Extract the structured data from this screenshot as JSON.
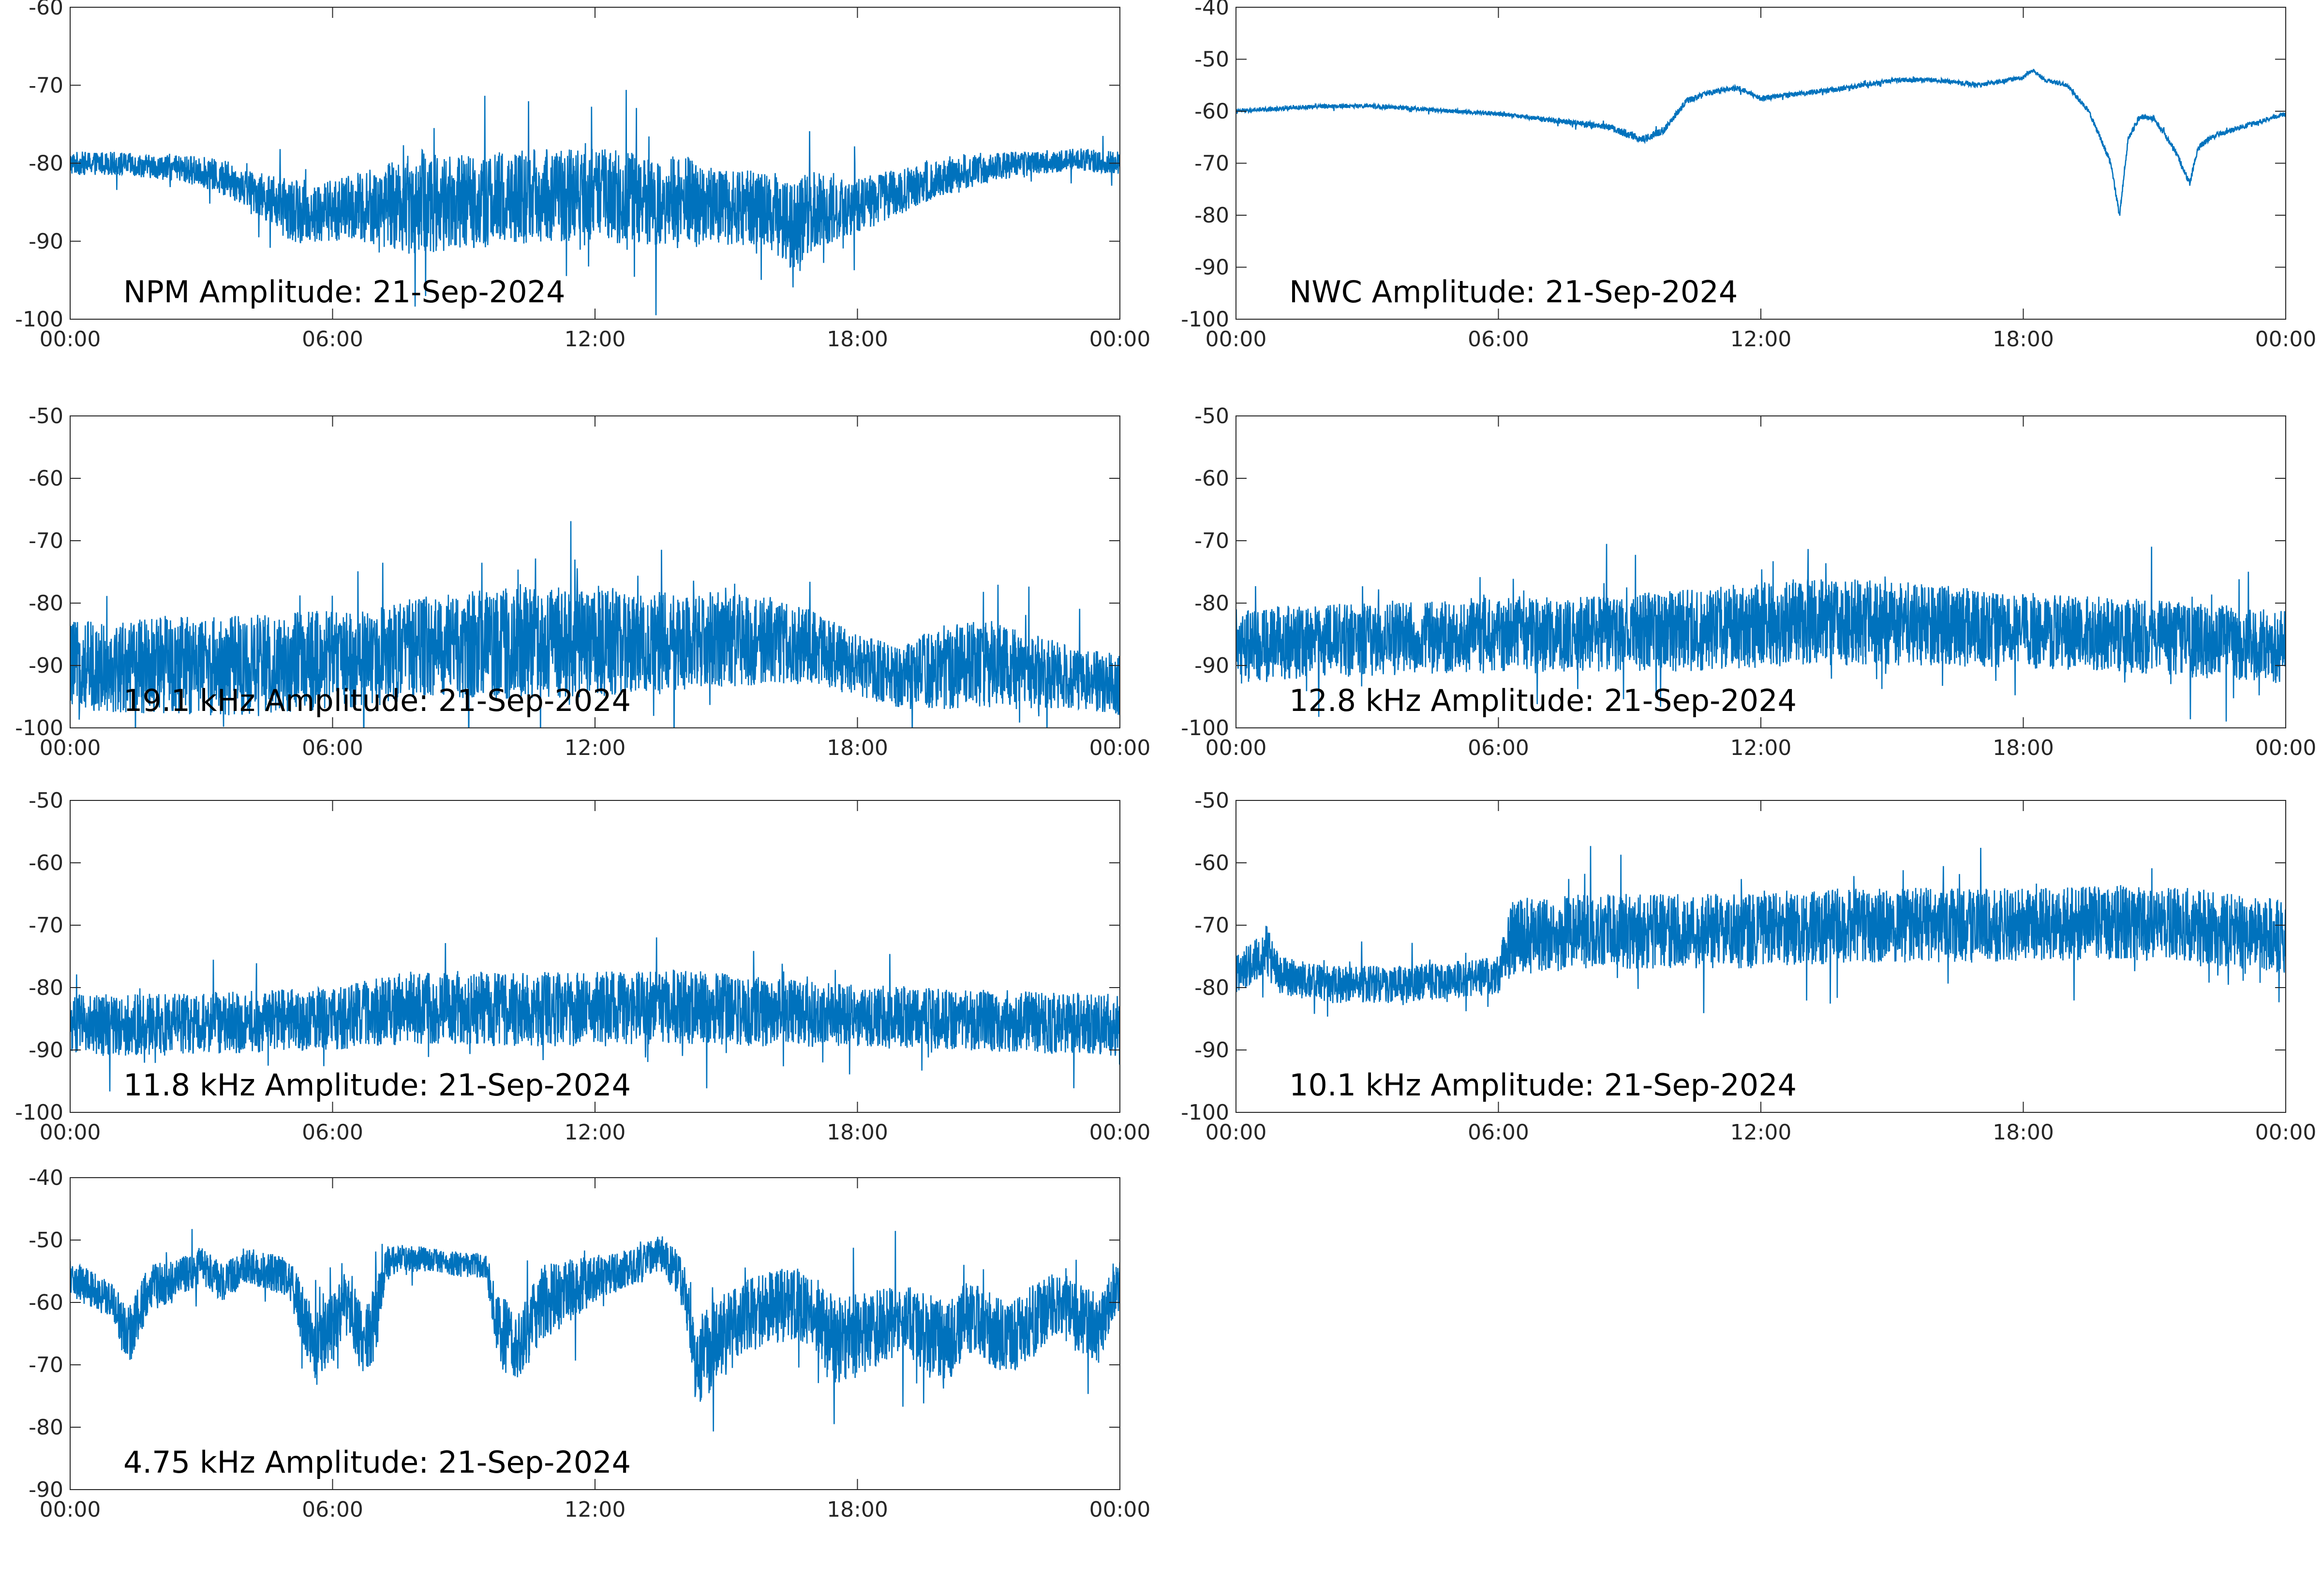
{
  "figure": {
    "line_color": "#0072bd",
    "background": "#ffffff"
  },
  "chart_data": [
    {
      "type": "line",
      "title": "NPM Amplitude: 21-Sep-2024",
      "xlabel": "",
      "ylabel": "",
      "x_ticks": [
        "00:00",
        "06:00",
        "12:00",
        "18:00",
        "00:00"
      ],
      "xlim_hours": [
        0,
        24
      ],
      "ylim": [
        -100,
        -60
      ],
      "y_ticks": [
        -60,
        -70,
        -80,
        -90,
        -100
      ],
      "grid": false,
      "series": [
        {
          "x_hours": [
            0,
            1,
            2,
            3,
            4,
            4.5,
            5,
            5.5,
            6,
            7,
            8,
            9,
            10,
            11,
            12,
            13,
            14,
            15,
            16,
            16.5,
            17,
            17.5,
            18,
            19,
            20,
            21,
            22,
            23,
            24
          ],
          "values": [
            -80,
            -80,
            -80.5,
            -81,
            -83,
            -84.5,
            -86,
            -86.5,
            -86,
            -85.5,
            -85,
            -85,
            -84.5,
            -84,
            -84,
            -84.5,
            -85,
            -85.5,
            -86,
            -88,
            -86,
            -86,
            -85.5,
            -83.5,
            -81.5,
            -80.5,
            -80,
            -79.5,
            -80
          ],
          "spread": [
            1.5,
            1.5,
            1.5,
            2,
            2.5,
            3,
            4,
            4,
            4,
            5,
            7,
            6,
            6,
            6,
            6,
            6,
            6,
            5,
            5,
            6,
            5,
            4,
            3.5,
            3,
            2.5,
            2,
            1.5,
            1.5,
            1.5
          ]
        }
      ]
    },
    {
      "type": "line",
      "title": "NWC Amplitude: 21-Sep-2024",
      "xlabel": "",
      "ylabel": "",
      "x_ticks": [
        "00:00",
        "06:00",
        "12:00",
        "18:00",
        "00:00"
      ],
      "xlim_hours": [
        0,
        24
      ],
      "ylim": [
        -100,
        -40
      ],
      "y_ticks": [
        -40,
        -50,
        -60,
        -70,
        -80,
        -90,
        -100
      ],
      "grid": false,
      "series": [
        {
          "x_hours": [
            0,
            1,
            2,
            3,
            4,
            5,
            6,
            6.5,
            7,
            7.5,
            8,
            8.5,
            9,
            9.3,
            9.8,
            10.3,
            11,
            11.5,
            12,
            12.5,
            13,
            14,
            15,
            16,
            17,
            18,
            18.2,
            18.5,
            19,
            19.5,
            20,
            20.2,
            20.4,
            20.7,
            21,
            21.5,
            21.8,
            22,
            22.3,
            23,
            24
          ],
          "values": [
            -60,
            -59.5,
            -59,
            -59,
            -59.5,
            -60,
            -60.5,
            -61,
            -61.5,
            -62,
            -62.5,
            -63,
            -64.5,
            -65.5,
            -63.5,
            -58,
            -56,
            -55.5,
            -57.5,
            -57,
            -56.5,
            -55.5,
            -54,
            -54,
            -55,
            -53.5,
            -52,
            -54,
            -55,
            -60,
            -70,
            -80,
            -65,
            -61,
            -61.5,
            -68,
            -74,
            -67,
            -65,
            -63,
            -60.5
          ],
          "spread": [
            0.4,
            0.4,
            0.4,
            0.4,
            0.4,
            0.4,
            0.4,
            0.4,
            0.5,
            0.5,
            0.6,
            0.6,
            0.8,
            0.8,
            0.7,
            0.6,
            0.5,
            0.5,
            0.5,
            0.5,
            0.5,
            0.5,
            0.4,
            0.4,
            0.4,
            0.4,
            0.4,
            0.4,
            0.4,
            0.5,
            0.6,
            0.6,
            0.6,
            0.5,
            0.5,
            0.6,
            0.7,
            0.6,
            0.5,
            0.5,
            0.4
          ]
        }
      ]
    },
    {
      "type": "line",
      "title": "19.1 kHz Amplitude: 21-Sep-2024",
      "xlabel": "",
      "ylabel": "",
      "x_ticks": [
        "00:00",
        "06:00",
        "12:00",
        "18:00",
        "00:00"
      ],
      "xlim_hours": [
        0,
        24
      ],
      "ylim": [
        -100,
        -50
      ],
      "y_ticks": [
        -50,
        -60,
        -70,
        -80,
        -90,
        -100
      ],
      "grid": false,
      "series": [
        {
          "x_hours": [
            0,
            2,
            4,
            6,
            7,
            8,
            10,
            12,
            14,
            15,
            16,
            17,
            18,
            19,
            20,
            21,
            22,
            23,
            24
          ],
          "values": [
            -90,
            -90,
            -90,
            -89,
            -88.5,
            -87,
            -86.5,
            -86,
            -86.5,
            -85.5,
            -86,
            -87,
            -90,
            -92,
            -90,
            -90,
            -91,
            -92,
            -93
          ],
          "spread": [
            7,
            8,
            8,
            8,
            8,
            8,
            9,
            9,
            8,
            8,
            7,
            6,
            5,
            5,
            7,
            7,
            6,
            5,
            5
          ]
        }
      ]
    },
    {
      "type": "line",
      "title": "12.8 kHz Amplitude: 21-Sep-2024",
      "xlabel": "",
      "ylabel": "",
      "x_ticks": [
        "00:00",
        "06:00",
        "12:00",
        "18:00",
        "00:00"
      ],
      "xlim_hours": [
        0,
        24
      ],
      "ylim": [
        -100,
        -50
      ],
      "y_ticks": [
        -50,
        -60,
        -70,
        -80,
        -90,
        -100
      ],
      "grid": false,
      "series": [
        {
          "x_hours": [
            0,
            2,
            4,
            6,
            8,
            10,
            12,
            13,
            14,
            16,
            18,
            20,
            22,
            24
          ],
          "values": [
            -87,
            -86,
            -85.5,
            -85,
            -85,
            -84.5,
            -83.5,
            -83,
            -83,
            -83.5,
            -84.5,
            -85,
            -86,
            -87
          ],
          "spread": [
            6,
            6,
            6,
            6,
            6,
            6.5,
            7,
            7,
            7,
            6.5,
            6,
            6,
            6,
            6
          ]
        }
      ]
    },
    {
      "type": "line",
      "title": "11.8 kHz Amplitude: 21-Sep-2024",
      "xlabel": "",
      "ylabel": "",
      "x_ticks": [
        "00:00",
        "06:00",
        "12:00",
        "18:00",
        "00:00"
      ],
      "xlim_hours": [
        0,
        24
      ],
      "ylim": [
        -100,
        -50
      ],
      "y_ticks": [
        -50,
        -60,
        -70,
        -80,
        -90,
        -100
      ],
      "grid": false,
      "series": [
        {
          "x_hours": [
            0,
            2,
            4,
            6,
            8,
            10,
            12,
            14,
            16,
            18,
            20,
            22,
            24
          ],
          "values": [
            -86,
            -86,
            -85.5,
            -85,
            -83,
            -83.5,
            -83.5,
            -83,
            -84,
            -84.5,
            -85,
            -85.5,
            -86
          ],
          "spread": [
            5,
            5,
            5,
            5,
            6,
            6,
            6,
            6,
            5.5,
            5,
            5,
            5,
            5
          ]
        }
      ]
    },
    {
      "type": "line",
      "title": "10.1 kHz Amplitude: 21-Sep-2024",
      "xlabel": "",
      "ylabel": "",
      "x_ticks": [
        "00:00",
        "06:00",
        "12:00",
        "18:00",
        "00:00"
      ],
      "xlim_hours": [
        0,
        24
      ],
      "ylim": [
        -100,
        -50
      ],
      "y_ticks": [
        -50,
        -60,
        -70,
        -80,
        -90,
        -100
      ],
      "grid": false,
      "series": [
        {
          "x_hours": [
            0,
            0.7,
            1,
            2,
            4,
            6,
            6.3,
            8,
            10,
            12,
            14,
            16,
            18,
            20,
            22,
            24
          ],
          "values": [
            -78,
            -74,
            -78,
            -79.5,
            -79.5,
            -78,
            -72,
            -71,
            -71,
            -71,
            -70,
            -70,
            -70,
            -69.5,
            -70,
            -72
          ],
          "spread": [
            3,
            4,
            3,
            3,
            3,
            3,
            6,
            6,
            6,
            6,
            6,
            6,
            6,
            6,
            6,
            6
          ]
        }
      ]
    },
    {
      "type": "line",
      "title": "4.75 kHz Amplitude: 21-Sep-2024",
      "xlabel": "",
      "ylabel": "",
      "x_ticks": [
        "00:00",
        "06:00",
        "12:00",
        "18:00",
        "00:00"
      ],
      "xlim_hours": [
        0,
        24
      ],
      "ylim": [
        -90,
        -40
      ],
      "y_ticks": [
        -40,
        -50,
        -60,
        -70,
        -80,
        -90
      ],
      "grid": false,
      "series": [
        {
          "x_hours": [
            0,
            0.5,
            1,
            1.3,
            1.8,
            2.5,
            3,
            3.5,
            4,
            4.5,
            5,
            5.3,
            5.6,
            6,
            6.3,
            6.7,
            7,
            7.2,
            7.5,
            8,
            9,
            9.5,
            9.8,
            10.2,
            10.8,
            11.5,
            12,
            12.5,
            13,
            13.5,
            14,
            14.3,
            14.8,
            15.5,
            16,
            16.5,
            17,
            17.5,
            18,
            18.5,
            19,
            19.5,
            20,
            20.5,
            21,
            21.5,
            22,
            22.5,
            23,
            23.5,
            24
          ],
          "values": [
            -56,
            -58,
            -60,
            -66,
            -58,
            -56,
            -54,
            -57,
            -54,
            -55,
            -56,
            -62,
            -68,
            -64,
            -60,
            -66,
            -63,
            -54,
            -53,
            -53,
            -54,
            -54,
            -64,
            -68,
            -60,
            -58,
            -56,
            -55,
            -54,
            -52,
            -56,
            -70,
            -66,
            -62,
            -61,
            -60,
            -62,
            -66,
            -65,
            -64,
            -63,
            -65,
            -67,
            -62,
            -64,
            -66,
            -63,
            -60,
            -62,
            -64,
            -57
          ],
          "spread": [
            3,
            3,
            3,
            5,
            4,
            3,
            3,
            3,
            3,
            3,
            3,
            5,
            6,
            6,
            5,
            6,
            6,
            3,
            2,
            2,
            2,
            2,
            6,
            6,
            6,
            5,
            4,
            3,
            3,
            3,
            4,
            7,
            7,
            6,
            6,
            6,
            6,
            7,
            7,
            6,
            6,
            7,
            7,
            6,
            6,
            6,
            6,
            5,
            6,
            6,
            4
          ]
        }
      ]
    }
  ]
}
